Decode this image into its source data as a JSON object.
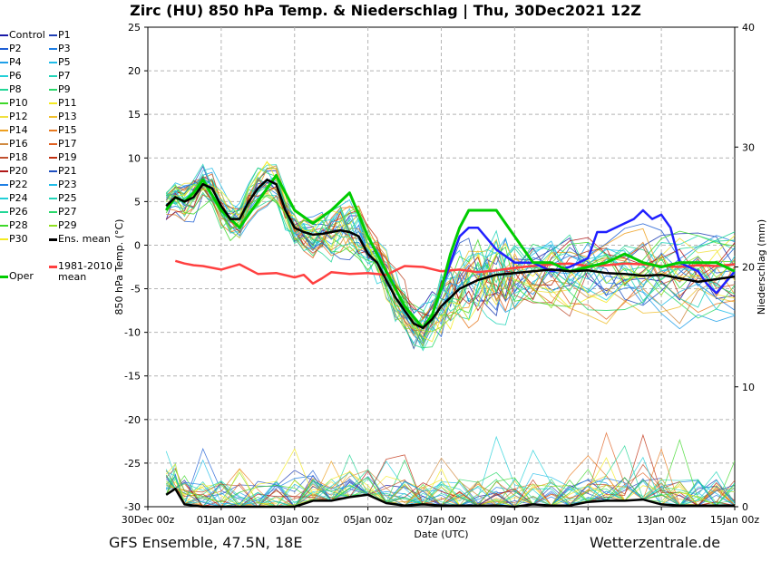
{
  "title": "Zirc  (HU)  850 hPa Temp. & Niederschlag | Thu, 30Dec2021 12Z",
  "footer": {
    "left": "GFS Ensemble, 47.5N, 18E",
    "right": "Wetterzentrale.de"
  },
  "colors": {
    "grid": "#b4b4b4",
    "mean": "#000000",
    "climate": "#ff4040",
    "oper": "#00cc00",
    "p15": "#2020ff"
  },
  "legend": [
    {
      "label": "Control",
      "color": "#1a1aa8"
    },
    {
      "label": "P1",
      "color": "#1f3fb4"
    },
    {
      "label": "P2",
      "color": "#1f5fd4"
    },
    {
      "label": "P3",
      "color": "#1f7fe4"
    },
    {
      "label": "P4",
      "color": "#1f9fe8"
    },
    {
      "label": "P5",
      "color": "#20bce8"
    },
    {
      "label": "P6",
      "color": "#22cfd8"
    },
    {
      "label": "P7",
      "color": "#22d4b8"
    },
    {
      "label": "P8",
      "color": "#22d696"
    },
    {
      "label": "P9",
      "color": "#2ad86a"
    },
    {
      "label": "P10",
      "color": "#3ed82a"
    },
    {
      "label": "P11",
      "color": "#f4ea20"
    },
    {
      "label": "P12",
      "color": "#f0e040"
    },
    {
      "label": "P13",
      "color": "#f0c030"
    },
    {
      "label": "P14",
      "color": "#eea020"
    },
    {
      "label": "P15",
      "color": "#e87a20"
    },
    {
      "label": "P16",
      "color": "#d08a40"
    },
    {
      "label": "P17",
      "color": "#e06020"
    },
    {
      "label": "P18",
      "color": "#c05030"
    },
    {
      "label": "P19",
      "color": "#c03010"
    },
    {
      "label": "P20",
      "color": "#b01818"
    },
    {
      "label": "P21",
      "color": "#2050c0"
    },
    {
      "label": "P22",
      "color": "#1f7fe4"
    },
    {
      "label": "P23",
      "color": "#20bce8"
    },
    {
      "label": "P24",
      "color": "#22cfd8"
    },
    {
      "label": "P25",
      "color": "#22d4b8"
    },
    {
      "label": "P26",
      "color": "#22d696"
    },
    {
      "label": "P27",
      "color": "#2ad86a"
    },
    {
      "label": "P28",
      "color": "#3ed82a"
    },
    {
      "label": "P29",
      "color": "#90e020"
    },
    {
      "label": "P30",
      "color": "#f4ea20"
    },
    {
      "label": "Ens. mean",
      "color": "#000000"
    },
    {
      "label": "Oper",
      "color": "#00cc00"
    },
    {
      "label": "1981-2010",
      "sub": "mean",
      "color": "#ff4040"
    }
  ],
  "chart_data": {
    "type": "line",
    "title": "Zirc  (HU)  850 hPa Temp. & Niederschlag | Thu, 30Dec2021 12Z",
    "xlabel": "Date (UTC)",
    "ylabel": "850 hPa Temp. (°C)",
    "y2label": "Niederschlag (mm)",
    "xlim": [
      0,
      16
    ],
    "x_unit": "days since 30Dec 00z",
    "ylim": [
      -30,
      25
    ],
    "y2lim": [
      0,
      40
    ],
    "grid": true,
    "x_ticks": [
      {
        "x": 0,
        "label": "30Dec 00z"
      },
      {
        "x": 2,
        "label": "01Jan 00z"
      },
      {
        "x": 4,
        "label": "03Jan 00z"
      },
      {
        "x": 6,
        "label": "05Jan 00z"
      },
      {
        "x": 8,
        "label": "07Jan 00z"
      },
      {
        "x": 10,
        "label": "09Jan 00z"
      },
      {
        "x": 12,
        "label": "11Jan 00z"
      },
      {
        "x": 14,
        "label": "13Jan 00z"
      },
      {
        "x": 16,
        "label": "15Jan 00z"
      }
    ],
    "y_ticks": [
      25,
      20,
      15,
      10,
      5,
      0,
      -5,
      -10,
      -15,
      -20,
      -25,
      -30
    ],
    "y2_ticks": [
      40,
      30,
      20,
      10,
      0
    ],
    "ens_mean": {
      "x": [
        0.5,
        0.75,
        1,
        1.25,
        1.5,
        1.75,
        2,
        2.25,
        2.5,
        2.75,
        3,
        3.25,
        3.5,
        3.75,
        4,
        4.25,
        4.5,
        4.75,
        5,
        5.25,
        5.5,
        5.75,
        6,
        6.25,
        6.5,
        6.75,
        7,
        7.25,
        7.5,
        7.75,
        8,
        8.25,
        8.5,
        8.75,
        9,
        9.25,
        9.5,
        9.75,
        10,
        10.5,
        11,
        11.5,
        12,
        12.5,
        13,
        13.5,
        14,
        14.5,
        15,
        15.5,
        16
      ],
      "y": [
        4.5,
        5.5,
        5,
        5.5,
        7,
        6.5,
        4.5,
        3,
        3,
        5,
        6.5,
        7.5,
        7,
        4,
        2,
        1.5,
        1.2,
        1.3,
        1.5,
        1.7,
        1.5,
        1,
        -1,
        -2,
        -4,
        -6,
        -7.5,
        -9,
        -9.5,
        -8.5,
        -7,
        -6,
        -5,
        -4.5,
        -4,
        -3.7,
        -3.4,
        -3.3,
        -3.2,
        -3,
        -2.8,
        -3,
        -2.9,
        -3.2,
        -3.3,
        -3.5,
        -3.4,
        -3.8,
        -4.2,
        -3.9,
        -3.6
      ]
    },
    "climate_mean": {
      "x": [
        0.75,
        1,
        1.25,
        1.5,
        2,
        2.5,
        3,
        3.5,
        4,
        4.25,
        4.5,
        4.75,
        5,
        5.5,
        6,
        6.5,
        7,
        7.5,
        8,
        8.5,
        9,
        9.5,
        10,
        10.5,
        11,
        11.5,
        12,
        12.5,
        13,
        13.5,
        14,
        14.5,
        15,
        15.5,
        16
      ],
      "y": [
        -1.8,
        -2.1,
        -2.3,
        -2.4,
        -2.8,
        -2.2,
        -3.3,
        -3.2,
        -3.7,
        -3.4,
        -4.4,
        -3.8,
        -3.1,
        -3.3,
        -3.2,
        -3.4,
        -2.4,
        -2.5,
        -3,
        -2.8,
        -3.1,
        -2.9,
        -2.6,
        -2.4,
        -2.2,
        -2.1,
        -2.4,
        -2.3,
        -2.1,
        -2.2,
        -2.4,
        -2.5,
        -2.3,
        -2.4,
        -2.2
      ]
    },
    "oper": {
      "x": [
        0.5,
        0.75,
        1,
        1.25,
        1.5,
        2,
        2.5,
        3,
        3.5,
        4,
        4.5,
        5,
        5.5,
        6,
        6.5,
        7,
        7.5,
        7.75,
        8,
        8.25,
        8.5,
        8.75,
        9,
        9.5,
        10,
        10.5,
        11,
        11.5,
        12,
        12.5,
        13,
        13.5,
        14,
        14.5,
        15,
        15.5,
        16
      ],
      "y": [
        4,
        5.5,
        5,
        6,
        7.5,
        4,
        2,
        5,
        8,
        4,
        2.5,
        4,
        6,
        1,
        -3,
        -7,
        -9.5,
        -8,
        -5,
        -1,
        2,
        4,
        4,
        4,
        1,
        -2,
        -2,
        -3,
        -2.5,
        -2,
        -1,
        -2,
        -2.5,
        -2,
        -2,
        -2,
        -3
      ]
    },
    "p15": {
      "x": [
        7.75,
        8,
        8.25,
        8.5,
        8.75,
        9,
        9.5,
        10,
        10.5,
        11,
        11.5,
        12,
        12.25,
        12.5,
        13,
        13.25,
        13.5,
        13.75,
        14,
        14.25,
        14.5,
        15,
        15.25,
        15.5,
        16
      ],
      "y": [
        -8,
        -5,
        -2,
        1,
        2,
        2,
        -0.5,
        -2,
        -2,
        -3,
        -2.5,
        -1.5,
        1.5,
        1.5,
        2.5,
        3,
        4,
        3,
        3.5,
        2,
        -2,
        -3,
        -4.5,
        -5.5,
        -3
      ]
    },
    "precip_mean_mm": {
      "x": [
        0.5,
        0.75,
        1,
        1.5,
        2,
        2.5,
        3,
        3.5,
        4,
        4.5,
        5,
        5.5,
        6,
        6.5,
        7,
        7.5,
        8,
        8.5,
        9,
        9.5,
        10,
        10.5,
        11,
        11.5,
        12,
        12.5,
        13,
        13.5,
        14,
        14.5,
        15,
        15.5,
        16
      ],
      "y": [
        1,
        1.5,
        0.2,
        0,
        0,
        0,
        0,
        0,
        0,
        0.5,
        0.5,
        0.8,
        1,
        0.3,
        0.1,
        0.2,
        0.1,
        0.1,
        0.1,
        0.1,
        0,
        0.2,
        0.1,
        0.1,
        0.4,
        0.5,
        0.5,
        0.6,
        0.2,
        0.1,
        0.1,
        0.1,
        0.1
      ]
    }
  }
}
